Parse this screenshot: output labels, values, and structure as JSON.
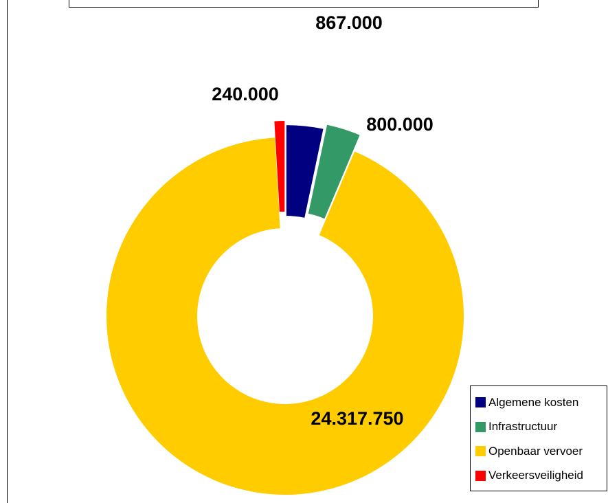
{
  "chart_data": {
    "type": "pie",
    "variant": "exploded-doughnut",
    "title": "",
    "categories": [
      "Algemene kosten",
      "Infrastructuur",
      "Openbaar vervoer",
      "Verkeersveiligheid"
    ],
    "values": [
      867000,
      800000,
      24317750,
      240000
    ],
    "value_labels": [
      "867.000",
      "800.000",
      "24.317.750",
      "240.000"
    ],
    "colors": [
      "#000080",
      "#339966",
      "#FFCC00",
      "#FF0000"
    ],
    "legend": {
      "position": "bottom-right"
    }
  }
}
